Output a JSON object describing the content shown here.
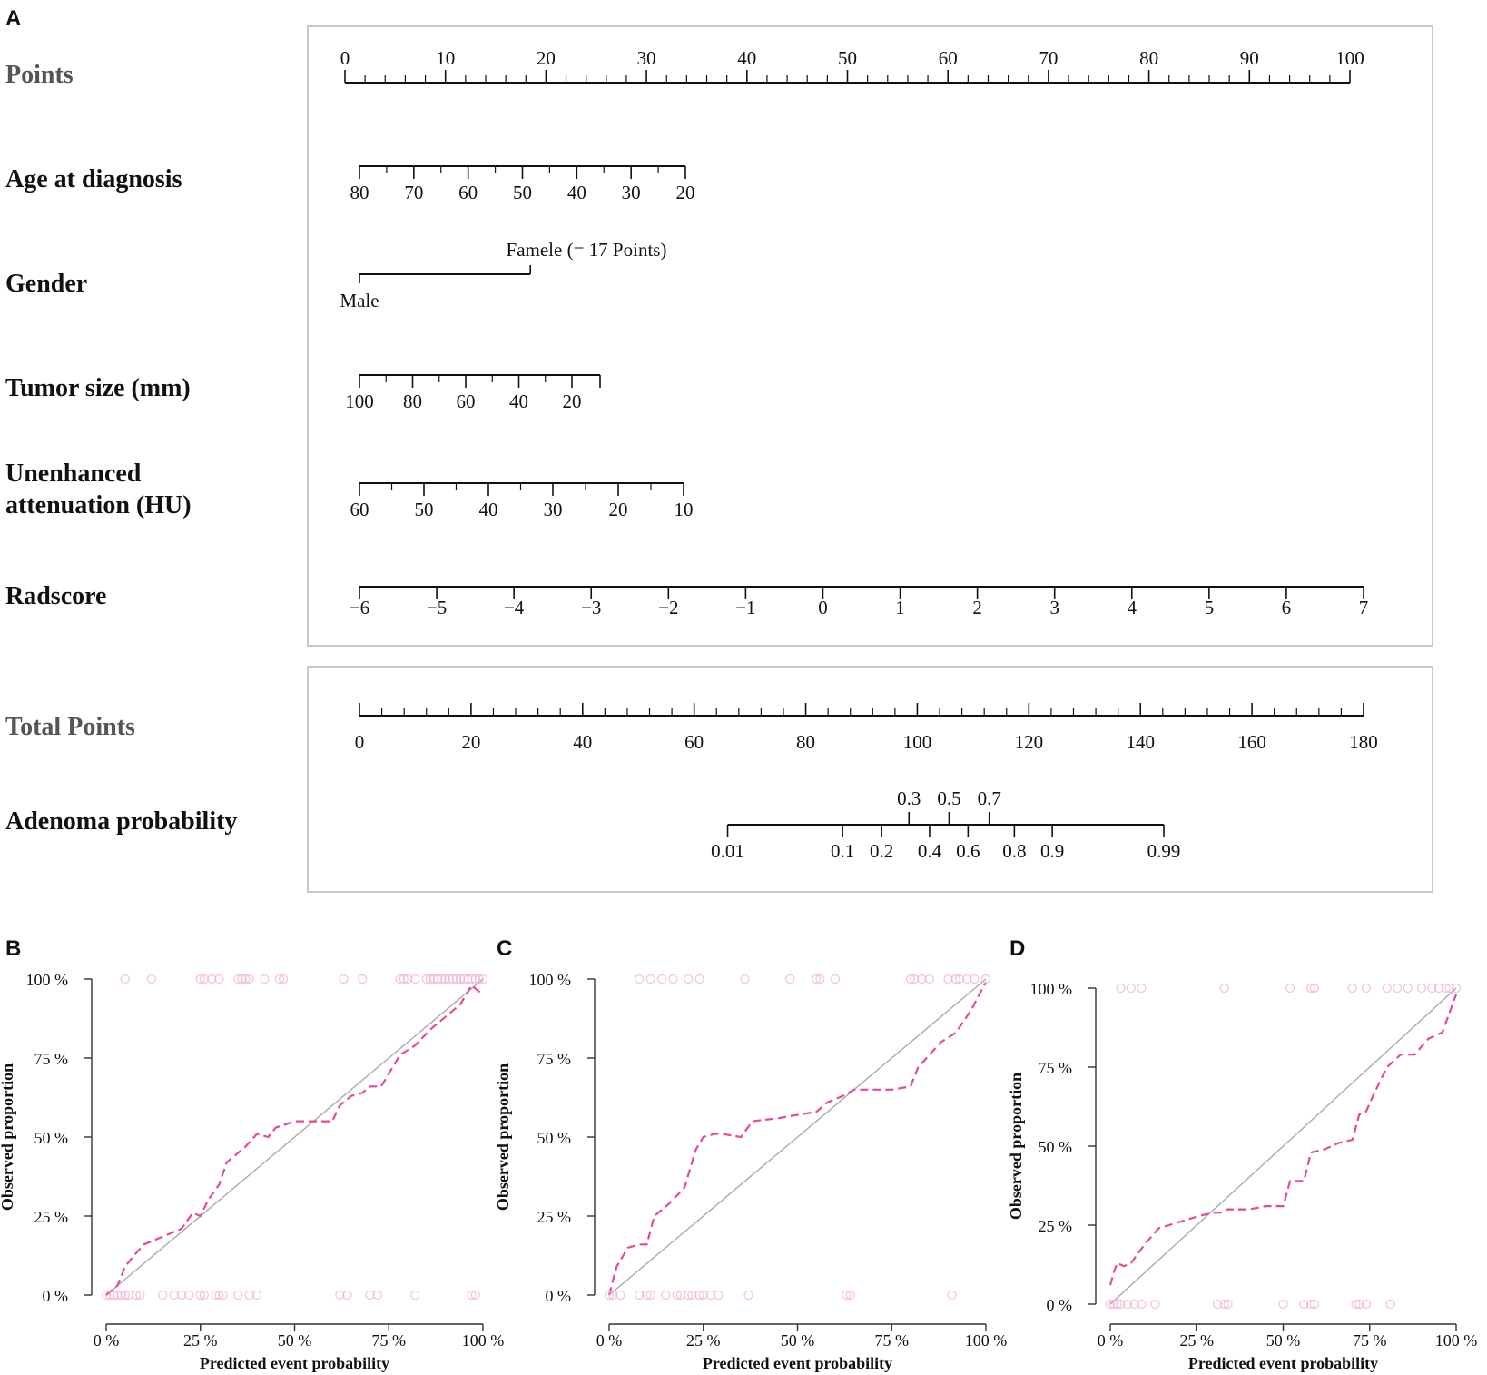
{
  "nomogram": {
    "panel_letter": "A",
    "axes": [
      {
        "key": "points",
        "label": "Points",
        "label_color": "#555555",
        "ticks": [
          "0",
          "10",
          "20",
          "30",
          "40",
          "50",
          "60",
          "70",
          "80",
          "90",
          "100"
        ],
        "minor_per": 5
      },
      {
        "key": "age",
        "label": "Age at diagnosis",
        "ticks": [
          "80",
          "70",
          "60",
          "50",
          "40",
          "30",
          "20"
        ],
        "minor_per": 2
      },
      {
        "key": "tumor",
        "label": "Tumor size (mm)",
        "ticks": [
          "100",
          "80",
          "60",
          "40",
          "20"
        ],
        "minor_per": 2
      },
      {
        "key": "hu",
        "label_lines": [
          "Unenhanced",
          "attenuation (HU)"
        ],
        "ticks": [
          "60",
          "50",
          "40",
          "30",
          "20",
          "10"
        ],
        "minor_per": 2
      },
      {
        "key": "radscore",
        "label": "Radscore",
        "ticks": [
          "−6",
          "−5",
          "−4",
          "−3",
          "−2",
          "−1",
          "0",
          "1",
          "2",
          "3",
          "4",
          "5",
          "6",
          "7"
        ],
        "minor_per": 1
      }
    ],
    "gender": {
      "label": "Gender",
      "male": "Male",
      "female": "Famele (= 17 Points)",
      "female_points": 17
    },
    "total": {
      "label": "Total Points",
      "label_color": "#555555",
      "ticks": [
        "0",
        "20",
        "40",
        "60",
        "80",
        "100",
        "120",
        "140",
        "160",
        "180"
      ],
      "minor_per": 5
    },
    "probability": {
      "label": "Adenoma probability",
      "top_ticks": [
        {
          "label": "0.3",
          "total_points": 98.5
        },
        {
          "label": "0.5",
          "total_points": 105.7
        },
        {
          "label": "0.7",
          "total_points": 112.9
        }
      ],
      "bottom_ticks": [
        {
          "label": "0.01",
          "total_points": 66
        },
        {
          "label": "0.1",
          "total_points": 86.6
        },
        {
          "label": "0.2",
          "total_points": 93.6
        },
        {
          "label": "0.4",
          "total_points": 102.2
        },
        {
          "label": "0.6",
          "total_points": 109.1
        },
        {
          "label": "0.8",
          "total_points": 117.4
        },
        {
          "label": "0.9",
          "total_points": 124.2
        },
        {
          "label": "0.99",
          "total_points": 144.2
        }
      ]
    }
  },
  "chart_data": [
    {
      "type": "line",
      "panel_letter": "B",
      "title": "",
      "xlabel": "Predicted event probability",
      "ylabel": "Observed proportion",
      "xlim": [
        0,
        1
      ],
      "ylim": [
        0,
        1
      ],
      "x_tick_labels": [
        "0 %",
        "25 %",
        "50 %",
        "75 %",
        "100 %"
      ],
      "y_tick_labels": [
        "0 %",
        "25 %",
        "50 %",
        "75 %",
        "100 %"
      ],
      "series": [
        {
          "name": "ideal",
          "style": "solid",
          "color": "#aaaaaa",
          "x": [
            0,
            1
          ],
          "y": [
            0,
            1
          ]
        },
        {
          "name": "calibration",
          "style": "dashed",
          "color": "#e8489a",
          "x": [
            0.0,
            0.03,
            0.05,
            0.07,
            0.1,
            0.14,
            0.2,
            0.23,
            0.25,
            0.27,
            0.3,
            0.32,
            0.34,
            0.37,
            0.4,
            0.43,
            0.45,
            0.5,
            0.55,
            0.6,
            0.62,
            0.65,
            0.68,
            0.7,
            0.73,
            0.78,
            0.82,
            0.86,
            0.9,
            0.94,
            0.97,
            1.0
          ],
          "y": [
            0.0,
            0.03,
            0.09,
            0.12,
            0.16,
            0.18,
            0.21,
            0.26,
            0.25,
            0.3,
            0.35,
            0.42,
            0.44,
            0.47,
            0.51,
            0.5,
            0.53,
            0.55,
            0.55,
            0.55,
            0.6,
            0.63,
            0.64,
            0.66,
            0.66,
            0.76,
            0.79,
            0.84,
            0.88,
            0.92,
            0.98,
            0.95
          ]
        }
      ],
      "points_top": [
        0.05,
        0.12,
        0.25,
        0.26,
        0.28,
        0.3,
        0.35,
        0.36,
        0.37,
        0.38,
        0.42,
        0.46,
        0.47,
        0.63,
        0.68,
        0.78,
        0.79,
        0.8,
        0.82,
        0.85,
        0.86,
        0.87,
        0.88,
        0.89,
        0.9,
        0.91,
        0.92,
        0.93,
        0.94,
        0.95,
        0.96,
        0.97,
        0.98,
        0.99,
        1.0
      ],
      "points_bottom": [
        0.0,
        0.01,
        0.02,
        0.03,
        0.04,
        0.05,
        0.06,
        0.08,
        0.09,
        0.15,
        0.18,
        0.2,
        0.22,
        0.25,
        0.26,
        0.29,
        0.3,
        0.31,
        0.35,
        0.38,
        0.4,
        0.62,
        0.64,
        0.7,
        0.72,
        0.82,
        0.97,
        0.98
      ]
    },
    {
      "type": "line",
      "panel_letter": "C",
      "title": "",
      "xlabel": "Predicted event probability",
      "ylabel": "Observed proportion",
      "xlim": [
        0,
        1
      ],
      "ylim": [
        0,
        1
      ],
      "x_tick_labels": [
        "0 %",
        "25 %",
        "50 %",
        "75 %",
        "100 %"
      ],
      "y_tick_labels": [
        "0 %",
        "25 %",
        "50 %",
        "75 %",
        "100 %"
      ],
      "series": [
        {
          "name": "ideal",
          "style": "solid",
          "color": "#aaaaaa",
          "x": [
            0,
            1
          ],
          "y": [
            0,
            1
          ]
        },
        {
          "name": "calibration",
          "style": "dashed",
          "color": "#e8489a",
          "x": [
            0.0,
            0.02,
            0.05,
            0.08,
            0.1,
            0.12,
            0.16,
            0.2,
            0.23,
            0.25,
            0.28,
            0.3,
            0.35,
            0.38,
            0.45,
            0.5,
            0.55,
            0.58,
            0.62,
            0.65,
            0.7,
            0.75,
            0.8,
            0.82,
            0.85,
            0.88,
            0.92,
            0.96,
            1.0
          ],
          "y": [
            0.0,
            0.09,
            0.15,
            0.16,
            0.16,
            0.25,
            0.29,
            0.34,
            0.46,
            0.5,
            0.51,
            0.51,
            0.5,
            0.55,
            0.56,
            0.57,
            0.58,
            0.61,
            0.63,
            0.65,
            0.65,
            0.65,
            0.66,
            0.72,
            0.76,
            0.8,
            0.83,
            0.9,
            0.99
          ]
        }
      ],
      "points_top": [
        0.08,
        0.11,
        0.14,
        0.17,
        0.21,
        0.24,
        0.36,
        0.48,
        0.55,
        0.56,
        0.6,
        0.8,
        0.81,
        0.83,
        0.85,
        0.9,
        0.92,
        0.93,
        0.95,
        0.97,
        1.0
      ],
      "points_bottom": [
        0.0,
        0.01,
        0.03,
        0.08,
        0.1,
        0.11,
        0.15,
        0.18,
        0.19,
        0.21,
        0.22,
        0.24,
        0.25,
        0.27,
        0.29,
        0.37,
        0.63,
        0.64,
        0.91
      ]
    },
    {
      "type": "line",
      "panel_letter": "D",
      "title": "",
      "xlabel": "Predicted event probability",
      "ylabel": "Observed proportion",
      "xlim": [
        0,
        1
      ],
      "ylim": [
        0,
        1
      ],
      "x_tick_labels": [
        "0 %",
        "25 %",
        "50 %",
        "75 %",
        "100 %"
      ],
      "y_tick_labels": [
        "0 %",
        "25 %",
        "50 %",
        "75 %",
        "100 %"
      ],
      "series": [
        {
          "name": "ideal",
          "style": "solid",
          "color": "#aaaaaa",
          "x": [
            0,
            1
          ],
          "y": [
            0,
            1
          ]
        },
        {
          "name": "calibration",
          "style": "dashed",
          "color": "#e8489a",
          "x": [
            0.0,
            0.01,
            0.02,
            0.04,
            0.06,
            0.08,
            0.1,
            0.14,
            0.2,
            0.26,
            0.3,
            0.32,
            0.34,
            0.36,
            0.4,
            0.45,
            0.5,
            0.52,
            0.56,
            0.58,
            0.62,
            0.66,
            0.7,
            0.72,
            0.74,
            0.76,
            0.8,
            0.84,
            0.88,
            0.92,
            0.96,
            1.0
          ],
          "y": [
            0.06,
            0.1,
            0.13,
            0.12,
            0.13,
            0.16,
            0.19,
            0.24,
            0.26,
            0.28,
            0.29,
            0.29,
            0.3,
            0.3,
            0.3,
            0.31,
            0.31,
            0.39,
            0.39,
            0.48,
            0.49,
            0.51,
            0.52,
            0.6,
            0.61,
            0.66,
            0.75,
            0.79,
            0.79,
            0.84,
            0.86,
            0.98
          ]
        }
      ],
      "points_top": [
        0.03,
        0.06,
        0.09,
        0.33,
        0.52,
        0.58,
        0.59,
        0.7,
        0.74,
        0.8,
        0.83,
        0.86,
        0.9,
        0.93,
        0.95,
        0.97,
        0.98,
        1.0
      ],
      "points_bottom": [
        0.0,
        0.01,
        0.02,
        0.03,
        0.05,
        0.07,
        0.09,
        0.13,
        0.31,
        0.33,
        0.34,
        0.5,
        0.56,
        0.58,
        0.59,
        0.71,
        0.72,
        0.74,
        0.81
      ]
    }
  ]
}
